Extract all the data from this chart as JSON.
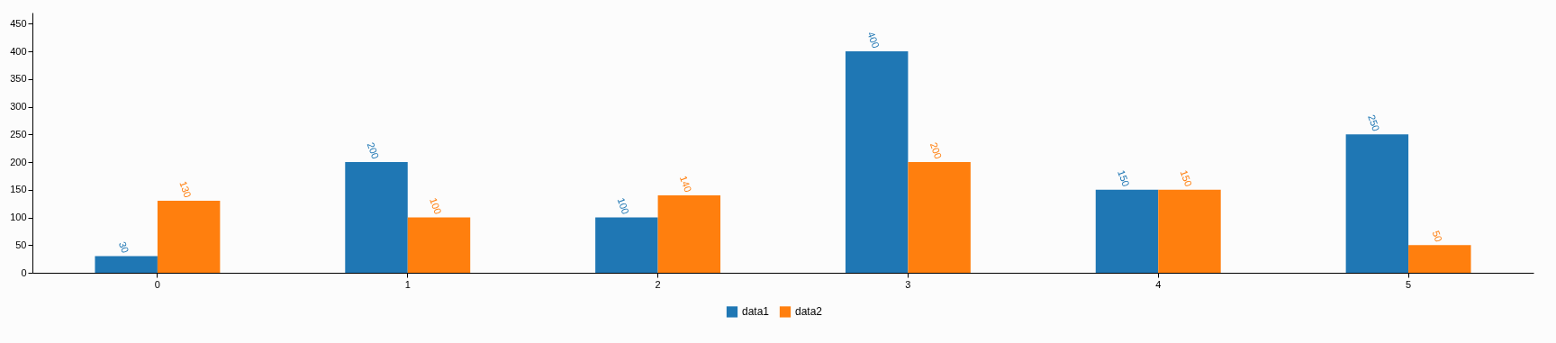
{
  "chart_data": {
    "type": "bar",
    "categories": [
      "0",
      "1",
      "2",
      "3",
      "4",
      "5"
    ],
    "series": [
      {
        "name": "data1",
        "color": "#1f77b4",
        "values": [
          30,
          200,
          100,
          400,
          150,
          250
        ]
      },
      {
        "name": "data2",
        "color": "#ff7f0e",
        "values": [
          130,
          100,
          140,
          200,
          150,
          50
        ]
      }
    ],
    "ylim": [
      0,
      470
    ],
    "yticks": [
      0,
      50,
      100,
      150,
      200,
      250,
      300,
      350,
      400,
      450
    ],
    "grid": false,
    "legend": "bottom",
    "data_labels": true
  }
}
